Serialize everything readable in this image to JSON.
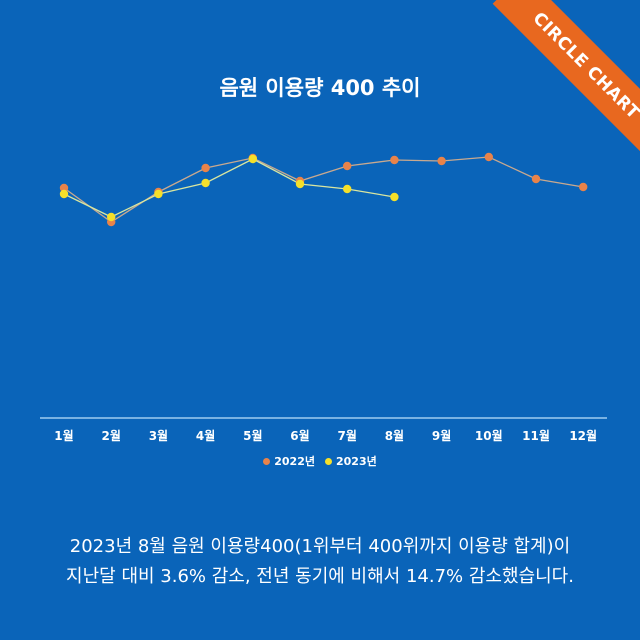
{
  "title": "음원 이용량 400 추이",
  "badge": "CIRCLE CHART",
  "colors": {
    "background": "#0a64b9",
    "series_2022": "#e8834a",
    "series_2023": "#f5e02a",
    "ribbon": "#e8681f",
    "axis": "#9ecbf0"
  },
  "chart_data": {
    "type": "line",
    "title": "음원 이용량 400 추이",
    "xlabel": "",
    "ylabel": "",
    "categories": [
      "1월",
      "2월",
      "3월",
      "4월",
      "5월",
      "6월",
      "7월",
      "8월",
      "9월",
      "10월",
      "11월",
      "12월"
    ],
    "y_units_note": "no y-axis scale shown; values are relative heights above the x-axis baseline",
    "series": [
      {
        "name": "2022년",
        "color": "#e8834a",
        "values": [
          230,
          196,
          226,
          250,
          260,
          237,
          252,
          258,
          257,
          261,
          239,
          231
        ]
      },
      {
        "name": "2023년",
        "color": "#f5e02a",
        "values": [
          224,
          201,
          224,
          235,
          259,
          234,
          229,
          221
        ]
      }
    ],
    "grid": false,
    "legend_position": "bottom"
  },
  "legend": {
    "items": [
      {
        "label": "2022년"
      },
      {
        "label": "2023년"
      }
    ]
  },
  "caption": {
    "line1": "2023년 8월 음원 이용량400(1위부터 400위까지 이용량 합계)이",
    "line2": "지난달 대비 3.6% 감소, 전년 동기에 비해서 14.7% 감소했습니다."
  }
}
